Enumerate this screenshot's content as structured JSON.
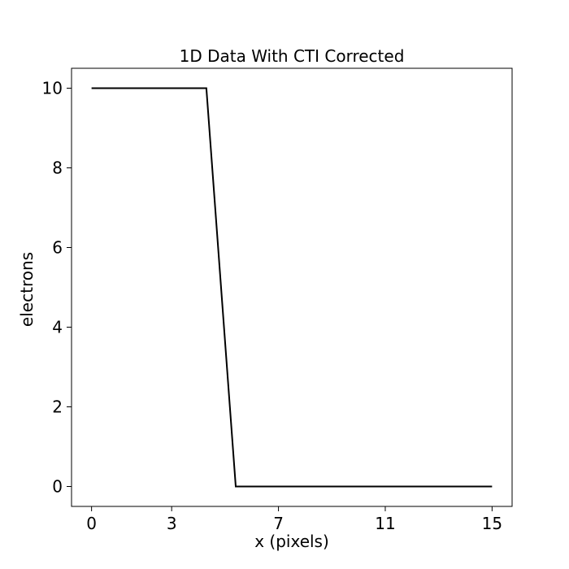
{
  "chart_data": {
    "type": "line",
    "title": "1D Data With CTI Corrected",
    "xlabel": "x (pixels)",
    "ylabel": "electrons",
    "xlim": [
      -0.75,
      15.75
    ],
    "ylim": [
      -0.5,
      10.5
    ],
    "x_ticks": [
      0,
      3,
      7,
      11,
      15
    ],
    "x_tick_labels": [
      "0",
      "3",
      "7",
      "11",
      "15"
    ],
    "y_ticks": [
      0,
      2,
      4,
      6,
      8,
      10
    ],
    "y_tick_labels": [
      "0",
      "2",
      "4",
      "6",
      "8",
      "10"
    ],
    "grid": false,
    "series": [
      {
        "color": "#000000",
        "x": [
          0,
          1,
          2,
          3,
          4.3,
          5.4,
          6,
          7,
          8,
          9,
          10,
          11,
          12,
          13,
          14,
          15
        ],
        "y": [
          10,
          10,
          10,
          10,
          10,
          0,
          0,
          0,
          0,
          0,
          0,
          0,
          0,
          0,
          0,
          0
        ]
      }
    ]
  }
}
